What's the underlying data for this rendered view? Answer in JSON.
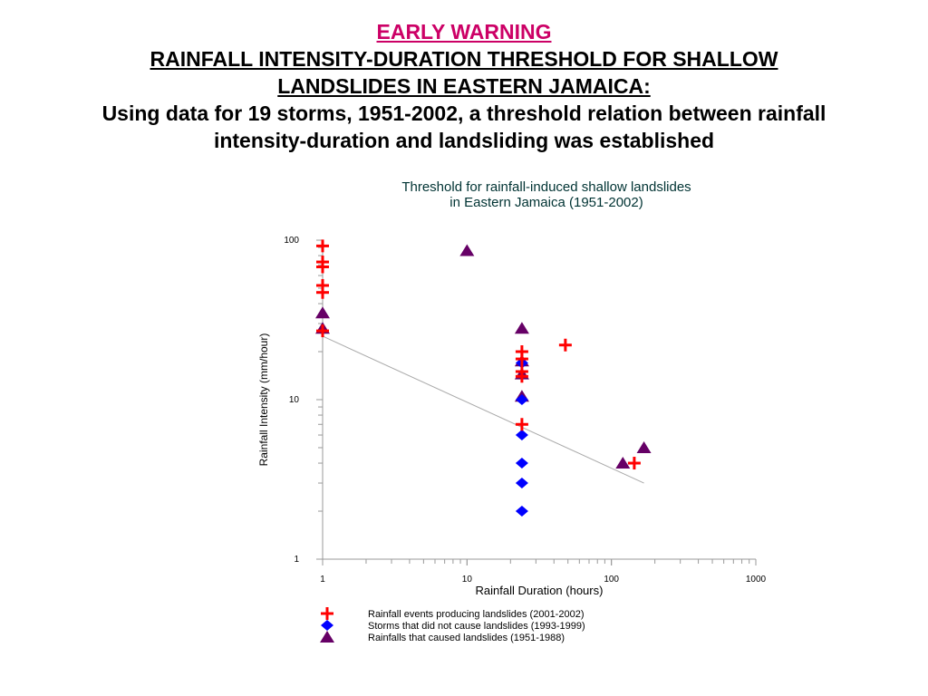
{
  "heading": {
    "line1": "EARLY WARNING",
    "line2": "RAINFALL INTENSITY-DURATION THRESHOLD FOR SHALLOW",
    "line3": "LANDSLIDES IN EASTERN JAMAICA:",
    "line4": "Using data for 19 storms, 1951-2002, a threshold relation between rainfall",
    "line5": "intensity-duration and landsliding was established",
    "accent_color": "#cc0066"
  },
  "chart_data": {
    "type": "scatter",
    "title": "Threshold for rainfall-induced shallow landslides",
    "subtitle": "in Eastern Jamaica (1951-2002)",
    "xlabel": "Rainfall Duration (hours)",
    "ylabel": "Rainfall Intensity (mm/hour)",
    "x_scale": "log",
    "y_scale": "log",
    "xlim": [
      1,
      1000
    ],
    "ylim": [
      1,
      100
    ],
    "x_ticks": [
      "1",
      "10",
      "100",
      "1000"
    ],
    "y_ticks": [
      "1",
      "10",
      "100"
    ],
    "grid": false,
    "legend_position": "bottom",
    "series": [
      {
        "name": "Rainfall events producing landslides (2001-2002)",
        "marker": "plus",
        "color": "#ff0000",
        "points": [
          [
            1,
            92
          ],
          [
            1,
            73
          ],
          [
            1,
            68
          ],
          [
            1,
            52
          ],
          [
            1,
            47
          ],
          [
            1,
            27
          ],
          [
            24,
            20
          ],
          [
            24,
            18
          ],
          [
            24,
            15
          ],
          [
            24,
            14
          ],
          [
            24,
            7
          ],
          [
            48,
            22
          ],
          [
            144,
            4
          ]
        ]
      },
      {
        "name": "Storms that did not cause landslides (1993-1999)",
        "marker": "diamond",
        "color": "#0000ff",
        "points": [
          [
            24,
            17
          ],
          [
            24,
            10
          ],
          [
            24,
            6
          ],
          [
            24,
            4
          ],
          [
            24,
            3
          ],
          [
            24,
            2
          ]
        ]
      },
      {
        "name": "Rainfalls that caused landslides (1951-1988)",
        "marker": "triangle",
        "color": "#660066",
        "points": [
          [
            10,
            86
          ],
          [
            1,
            35
          ],
          [
            1,
            28
          ],
          [
            24,
            28
          ],
          [
            24,
            17.5
          ],
          [
            24,
            14.5
          ],
          [
            24,
            10.5
          ],
          [
            168,
            5
          ],
          [
            120,
            4
          ]
        ]
      }
    ],
    "threshold_line": {
      "color": "#aaaaaa",
      "points": [
        [
          1,
          25
        ],
        [
          168,
          3
        ]
      ]
    }
  }
}
